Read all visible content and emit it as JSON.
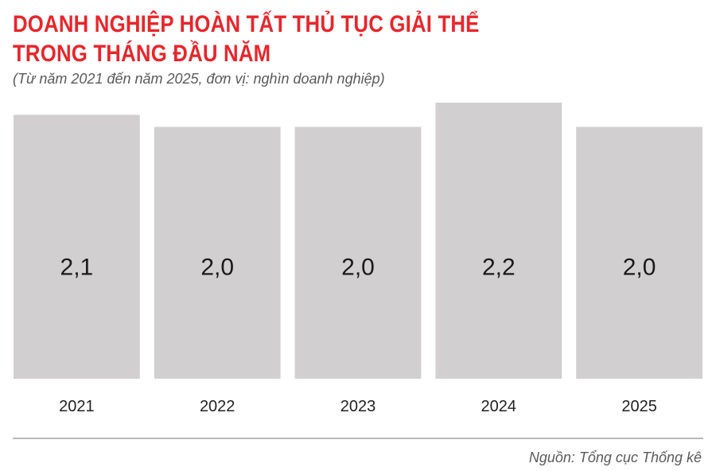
{
  "chart_data": {
    "type": "bar",
    "title_lines": [
      "DOANH NGHIỆP HOÀN TẤT THỦ TỤC GIẢI THỂ",
      "TRONG THÁNG ĐẦU NĂM"
    ],
    "subtitle": "(Từ năm 2021 đến năm 2025, đơn vị: nghìn doanh nghiệp)",
    "categories": [
      "2021",
      "2022",
      "2023",
      "2024",
      "2025"
    ],
    "values": [
      2.1,
      2.0,
      2.0,
      2.2,
      2.0
    ],
    "value_labels": [
      "2,1",
      "2,0",
      "2,0",
      "2,2",
      "2,0"
    ],
    "xlabel": "",
    "ylabel": "",
    "grid": false,
    "legend": "none",
    "bar_color": "#d2cfd1",
    "title_color": "#e8262b"
  },
  "source": "Nguồn: Tổng cục Thống kê"
}
